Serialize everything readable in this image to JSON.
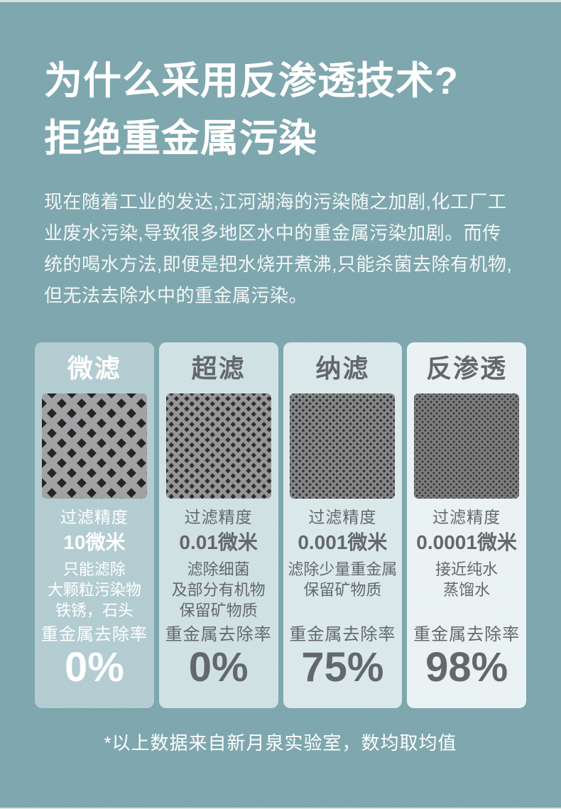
{
  "page": {
    "title_line1": "为什么采用反渗透技术?",
    "title_line2": "拒绝重金属污染",
    "intro": "现在随着工业的发达,江河湖海的污染随之加剧,化工厂工业废水污染,导致很多地区水中的重金属污染加剧。而传统的喝水方法,即便是把水烧开煮沸,只能杀菌去除有机物,但无法去除水中的重金属污染。",
    "footnote": "*以上数据来自新月泉实验室，数均取均值",
    "colors": {
      "background": "#76a1a9",
      "heading_text": "#ffffff",
      "body_text": "#f3f7f6",
      "card_dark_text": "#595e61"
    }
  },
  "cards": [
    {
      "title": "微滤",
      "mesh_icon": "woven-mesh-coarse",
      "mesh": {
        "pitch": 28,
        "stroke": 10,
        "wire": "#9a9b9d",
        "bg": "#161616"
      },
      "precision_label": "过滤精度",
      "precision_value": "10微米",
      "description_lines": [
        "只能滤除",
        "大颗粒污染物",
        "铁锈，石头"
      ],
      "removal_label": "重金属去除率",
      "removal_value": "0%",
      "background_color": "#aec9cf",
      "text_color": "#ffffff"
    },
    {
      "title": "超滤",
      "mesh_icon": "woven-mesh-fine",
      "mesh": {
        "pitch": 14.5,
        "stroke": 5,
        "wire": "#8e8f91",
        "bg": "#1f1f1f"
      },
      "precision_label": "过滤精度",
      "precision_value": "0.01微米",
      "description_lines": [
        "滤除细菌",
        "及部分有机物",
        "保留矿物质"
      ],
      "removal_label": "重金属去除率",
      "removal_value": "0%",
      "background_color": "#cddfe2",
      "text_color": "#595e61"
    },
    {
      "title": "纳滤",
      "mesh_icon": "woven-mesh-very-fine",
      "mesh": {
        "pitch": 9.5,
        "stroke": 3.4,
        "wire": "#7e7f81",
        "bg": "#262626"
      },
      "precision_label": "过滤精度",
      "precision_value": "0.001微米",
      "description_lines": [
        "滤除少量重金属",
        "保留矿物质"
      ],
      "removal_label": "重金属去除率",
      "removal_value": "75%",
      "background_color": "#d8e7e9",
      "text_color": "#595e61"
    },
    {
      "title": "反渗透",
      "mesh_icon": "woven-mesh-ultra-fine",
      "mesh": {
        "pitch": 8,
        "stroke": 2.9,
        "wire": "#747577",
        "bg": "#2a2a2a"
      },
      "precision_label": "过滤精度",
      "precision_value": "0.0001微米",
      "description_lines": [
        "接近纯水",
        "蒸馏水"
      ],
      "removal_label": "重金属去除率",
      "removal_value": "98%",
      "background_color": "#e8f1f2",
      "text_color": "#595e61"
    }
  ]
}
